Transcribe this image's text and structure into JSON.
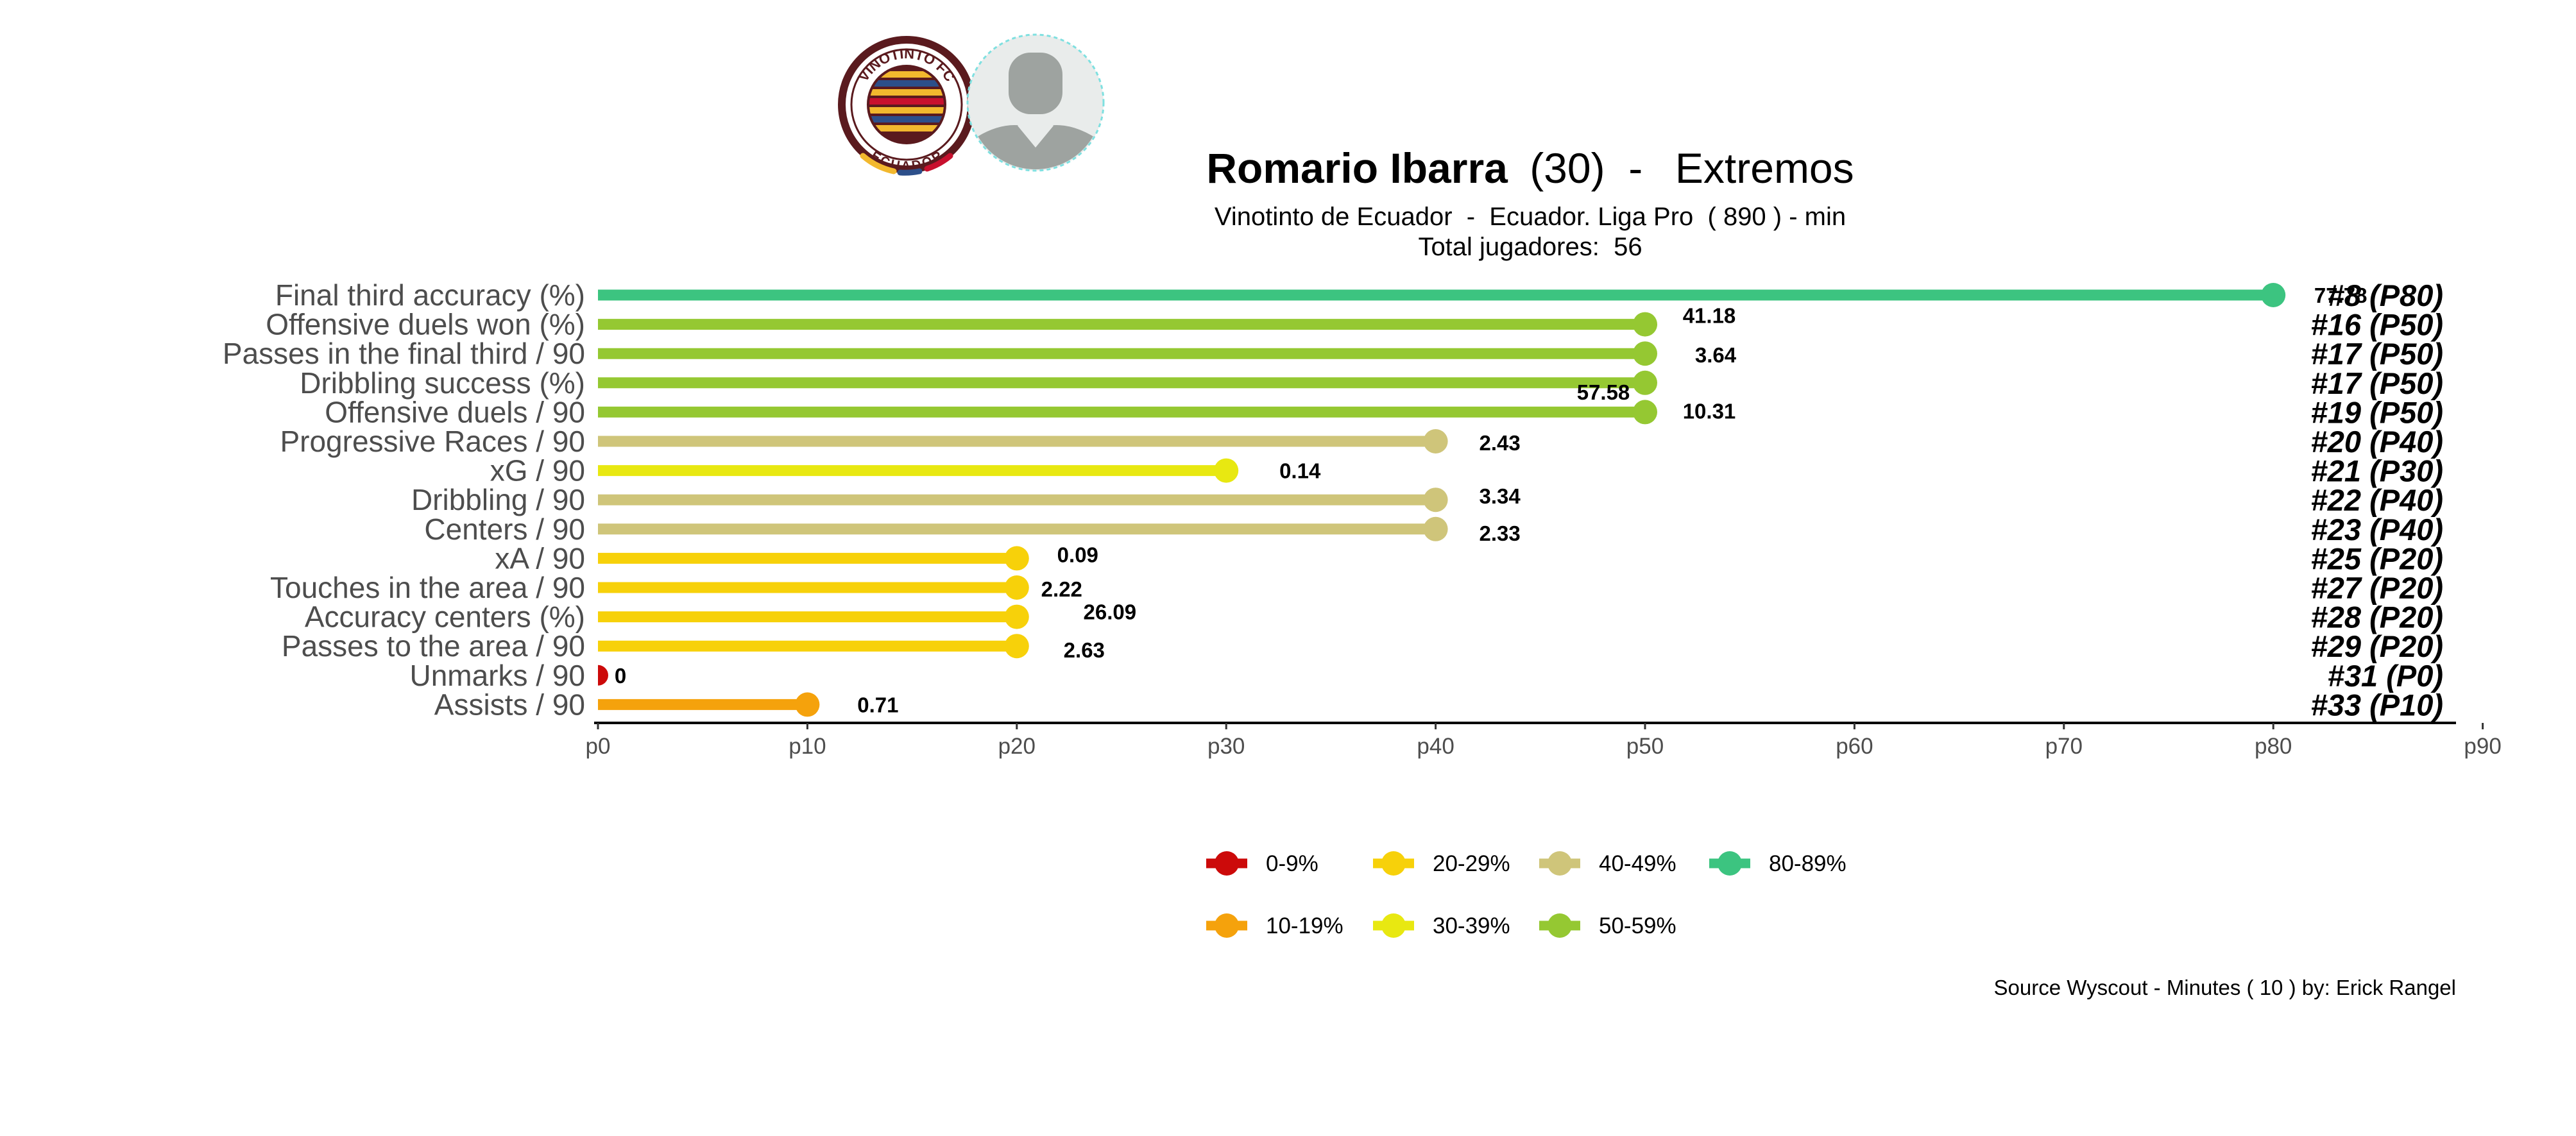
{
  "header": {
    "player_name": "Romario Ibarra",
    "player_age": "(30)",
    "separator": " - ",
    "position": "Extremos",
    "subtitle": "Vinotinto de Ecuador  -  Ecuador. Liga Pro  ( 890 ) - min",
    "total_players": "Total jugadores:  56"
  },
  "logo": {
    "top_text": "VINOTINTO FC",
    "bottom_text": "ECUADOR",
    "colors": {
      "ring": "#5a1a1e",
      "gold": "#f2b82e",
      "blue": "#2c4f8a",
      "red": "#c8102e"
    }
  },
  "avatar": {
    "kind": "player-silhouette"
  },
  "footer": {
    "source": "Source Wyscout - Minutes ( 10 ) by: Erick Rangel"
  },
  "chart_data": {
    "type": "lollipop",
    "xlim": [
      0,
      100
    ],
    "x_ticks": [
      0,
      10,
      20,
      30,
      40,
      50,
      60,
      70,
      80,
      90
    ],
    "x_tick_labels": [
      "p0",
      "p10",
      "p20",
      "p30",
      "p40",
      "p50",
      "p60",
      "p70",
      "p80",
      "p90"
    ],
    "grid": false,
    "metrics": [
      {
        "label": "Final third accuracy (%)",
        "percentile": 80,
        "value": "77.78",
        "rank": "#8 (P80)",
        "color": "#3cc480"
      },
      {
        "label": "Offensive duels won (%)",
        "percentile": 50,
        "value": "41.18",
        "rank": "#16 (P50)",
        "color": "#95c832"
      },
      {
        "label": "Passes in the final third / 90",
        "percentile": 50,
        "value": "3.64",
        "rank": "#17 (P50)",
        "color": "#95c832"
      },
      {
        "label": "Dribbling success (%)",
        "percentile": 50,
        "value": "57.58",
        "rank": "#17 (P50)",
        "color": "#95c832"
      },
      {
        "label": "Offensive duels / 90",
        "percentile": 50,
        "value": "10.31",
        "rank": "#19 (P50)",
        "color": "#95c832"
      },
      {
        "label": "Progressive Races / 90",
        "percentile": 40,
        "value": "2.43",
        "rank": "#20 (P40)",
        "color": "#cfc57a"
      },
      {
        "label": "xG / 90",
        "percentile": 30,
        "value": "0.14",
        "rank": "#21 (P30)",
        "color": "#e8e811"
      },
      {
        "label": "Dribbling / 90",
        "percentile": 40,
        "value": "3.34",
        "rank": "#22 (P40)",
        "color": "#cfc57a"
      },
      {
        "label": "Centers / 90",
        "percentile": 40,
        "value": "2.33",
        "rank": "#23 (P40)",
        "color": "#cfc57a"
      },
      {
        "label": "xA / 90",
        "percentile": 20,
        "value": "0.09",
        "rank": "#25 (P20)",
        "color": "#f7d10a"
      },
      {
        "label": "Touches in the area / 90",
        "percentile": 20,
        "value": "2.22",
        "rank": "#27 (P20)",
        "color": "#f7d10a"
      },
      {
        "label": "Accuracy centers (%)",
        "percentile": 20,
        "value": "26.09",
        "rank": "#28 (P20)",
        "color": "#f7d10a"
      },
      {
        "label": "Passes to the area / 90",
        "percentile": 20,
        "value": "2.63",
        "rank": "#29 (P20)",
        "color": "#f7d10a"
      },
      {
        "label": "Unmarks / 90",
        "percentile": 0,
        "value": "0",
        "rank": "#31 (P0)",
        "color": "#cc0a0a"
      },
      {
        "label": "Assists / 90",
        "percentile": 10,
        "value": "0.71",
        "rank": "#33 (P10)",
        "color": "#f5a20c"
      }
    ],
    "legend": {
      "placement": "bottom",
      "items": [
        {
          "label": "0-9%",
          "color": "#cc0a0a"
        },
        {
          "label": "20-29%",
          "color": "#f7d10a"
        },
        {
          "label": "40-49%",
          "color": "#cfc57a"
        },
        {
          "label": "80-89%",
          "color": "#3cc480"
        },
        {
          "label": "10-19%",
          "color": "#f5a20c"
        },
        {
          "label": "30-39%",
          "color": "#e8e811"
        },
        {
          "label": "50-59%",
          "color": "#95c832"
        }
      ]
    }
  }
}
